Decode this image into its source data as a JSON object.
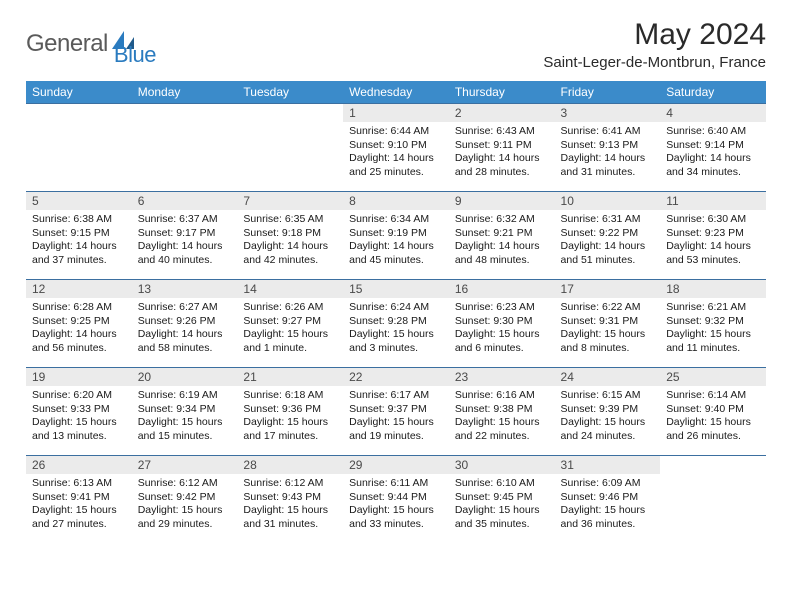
{
  "brand": {
    "part1": "General",
    "part2": "Blue",
    "accent_color": "#2a7bbf",
    "text_color": "#5a5a5a"
  },
  "title": "May 2024",
  "location": "Saint-Leger-de-Montbrun, France",
  "colors": {
    "header_bg": "#3b8bca",
    "header_fg": "#ffffff",
    "row_border": "#3b6fa0",
    "daynum_bg": "#ebebeb",
    "daynum_fg": "#4a4a4a"
  },
  "day_headers": [
    "Sunday",
    "Monday",
    "Tuesday",
    "Wednesday",
    "Thursday",
    "Friday",
    "Saturday"
  ],
  "weeks": [
    [
      {
        "n": "",
        "sunrise": "",
        "sunset": "",
        "daylight1": "",
        "daylight2": ""
      },
      {
        "n": "",
        "sunrise": "",
        "sunset": "",
        "daylight1": "",
        "daylight2": ""
      },
      {
        "n": "",
        "sunrise": "",
        "sunset": "",
        "daylight1": "",
        "daylight2": ""
      },
      {
        "n": "1",
        "sunrise": "Sunrise: 6:44 AM",
        "sunset": "Sunset: 9:10 PM",
        "daylight1": "Daylight: 14 hours",
        "daylight2": "and 25 minutes."
      },
      {
        "n": "2",
        "sunrise": "Sunrise: 6:43 AM",
        "sunset": "Sunset: 9:11 PM",
        "daylight1": "Daylight: 14 hours",
        "daylight2": "and 28 minutes."
      },
      {
        "n": "3",
        "sunrise": "Sunrise: 6:41 AM",
        "sunset": "Sunset: 9:13 PM",
        "daylight1": "Daylight: 14 hours",
        "daylight2": "and 31 minutes."
      },
      {
        "n": "4",
        "sunrise": "Sunrise: 6:40 AM",
        "sunset": "Sunset: 9:14 PM",
        "daylight1": "Daylight: 14 hours",
        "daylight2": "and 34 minutes."
      }
    ],
    [
      {
        "n": "5",
        "sunrise": "Sunrise: 6:38 AM",
        "sunset": "Sunset: 9:15 PM",
        "daylight1": "Daylight: 14 hours",
        "daylight2": "and 37 minutes."
      },
      {
        "n": "6",
        "sunrise": "Sunrise: 6:37 AM",
        "sunset": "Sunset: 9:17 PM",
        "daylight1": "Daylight: 14 hours",
        "daylight2": "and 40 minutes."
      },
      {
        "n": "7",
        "sunrise": "Sunrise: 6:35 AM",
        "sunset": "Sunset: 9:18 PM",
        "daylight1": "Daylight: 14 hours",
        "daylight2": "and 42 minutes."
      },
      {
        "n": "8",
        "sunrise": "Sunrise: 6:34 AM",
        "sunset": "Sunset: 9:19 PM",
        "daylight1": "Daylight: 14 hours",
        "daylight2": "and 45 minutes."
      },
      {
        "n": "9",
        "sunrise": "Sunrise: 6:32 AM",
        "sunset": "Sunset: 9:21 PM",
        "daylight1": "Daylight: 14 hours",
        "daylight2": "and 48 minutes."
      },
      {
        "n": "10",
        "sunrise": "Sunrise: 6:31 AM",
        "sunset": "Sunset: 9:22 PM",
        "daylight1": "Daylight: 14 hours",
        "daylight2": "and 51 minutes."
      },
      {
        "n": "11",
        "sunrise": "Sunrise: 6:30 AM",
        "sunset": "Sunset: 9:23 PM",
        "daylight1": "Daylight: 14 hours",
        "daylight2": "and 53 minutes."
      }
    ],
    [
      {
        "n": "12",
        "sunrise": "Sunrise: 6:28 AM",
        "sunset": "Sunset: 9:25 PM",
        "daylight1": "Daylight: 14 hours",
        "daylight2": "and 56 minutes."
      },
      {
        "n": "13",
        "sunrise": "Sunrise: 6:27 AM",
        "sunset": "Sunset: 9:26 PM",
        "daylight1": "Daylight: 14 hours",
        "daylight2": "and 58 minutes."
      },
      {
        "n": "14",
        "sunrise": "Sunrise: 6:26 AM",
        "sunset": "Sunset: 9:27 PM",
        "daylight1": "Daylight: 15 hours",
        "daylight2": "and 1 minute."
      },
      {
        "n": "15",
        "sunrise": "Sunrise: 6:24 AM",
        "sunset": "Sunset: 9:28 PM",
        "daylight1": "Daylight: 15 hours",
        "daylight2": "and 3 minutes."
      },
      {
        "n": "16",
        "sunrise": "Sunrise: 6:23 AM",
        "sunset": "Sunset: 9:30 PM",
        "daylight1": "Daylight: 15 hours",
        "daylight2": "and 6 minutes."
      },
      {
        "n": "17",
        "sunrise": "Sunrise: 6:22 AM",
        "sunset": "Sunset: 9:31 PM",
        "daylight1": "Daylight: 15 hours",
        "daylight2": "and 8 minutes."
      },
      {
        "n": "18",
        "sunrise": "Sunrise: 6:21 AM",
        "sunset": "Sunset: 9:32 PM",
        "daylight1": "Daylight: 15 hours",
        "daylight2": "and 11 minutes."
      }
    ],
    [
      {
        "n": "19",
        "sunrise": "Sunrise: 6:20 AM",
        "sunset": "Sunset: 9:33 PM",
        "daylight1": "Daylight: 15 hours",
        "daylight2": "and 13 minutes."
      },
      {
        "n": "20",
        "sunrise": "Sunrise: 6:19 AM",
        "sunset": "Sunset: 9:34 PM",
        "daylight1": "Daylight: 15 hours",
        "daylight2": "and 15 minutes."
      },
      {
        "n": "21",
        "sunrise": "Sunrise: 6:18 AM",
        "sunset": "Sunset: 9:36 PM",
        "daylight1": "Daylight: 15 hours",
        "daylight2": "and 17 minutes."
      },
      {
        "n": "22",
        "sunrise": "Sunrise: 6:17 AM",
        "sunset": "Sunset: 9:37 PM",
        "daylight1": "Daylight: 15 hours",
        "daylight2": "and 19 minutes."
      },
      {
        "n": "23",
        "sunrise": "Sunrise: 6:16 AM",
        "sunset": "Sunset: 9:38 PM",
        "daylight1": "Daylight: 15 hours",
        "daylight2": "and 22 minutes."
      },
      {
        "n": "24",
        "sunrise": "Sunrise: 6:15 AM",
        "sunset": "Sunset: 9:39 PM",
        "daylight1": "Daylight: 15 hours",
        "daylight2": "and 24 minutes."
      },
      {
        "n": "25",
        "sunrise": "Sunrise: 6:14 AM",
        "sunset": "Sunset: 9:40 PM",
        "daylight1": "Daylight: 15 hours",
        "daylight2": "and 26 minutes."
      }
    ],
    [
      {
        "n": "26",
        "sunrise": "Sunrise: 6:13 AM",
        "sunset": "Sunset: 9:41 PM",
        "daylight1": "Daylight: 15 hours",
        "daylight2": "and 27 minutes."
      },
      {
        "n": "27",
        "sunrise": "Sunrise: 6:12 AM",
        "sunset": "Sunset: 9:42 PM",
        "daylight1": "Daylight: 15 hours",
        "daylight2": "and 29 minutes."
      },
      {
        "n": "28",
        "sunrise": "Sunrise: 6:12 AM",
        "sunset": "Sunset: 9:43 PM",
        "daylight1": "Daylight: 15 hours",
        "daylight2": "and 31 minutes."
      },
      {
        "n": "29",
        "sunrise": "Sunrise: 6:11 AM",
        "sunset": "Sunset: 9:44 PM",
        "daylight1": "Daylight: 15 hours",
        "daylight2": "and 33 minutes."
      },
      {
        "n": "30",
        "sunrise": "Sunrise: 6:10 AM",
        "sunset": "Sunset: 9:45 PM",
        "daylight1": "Daylight: 15 hours",
        "daylight2": "and 35 minutes."
      },
      {
        "n": "31",
        "sunrise": "Sunrise: 6:09 AM",
        "sunset": "Sunset: 9:46 PM",
        "daylight1": "Daylight: 15 hours",
        "daylight2": "and 36 minutes."
      },
      {
        "n": "",
        "sunrise": "",
        "sunset": "",
        "daylight1": "",
        "daylight2": ""
      }
    ]
  ]
}
